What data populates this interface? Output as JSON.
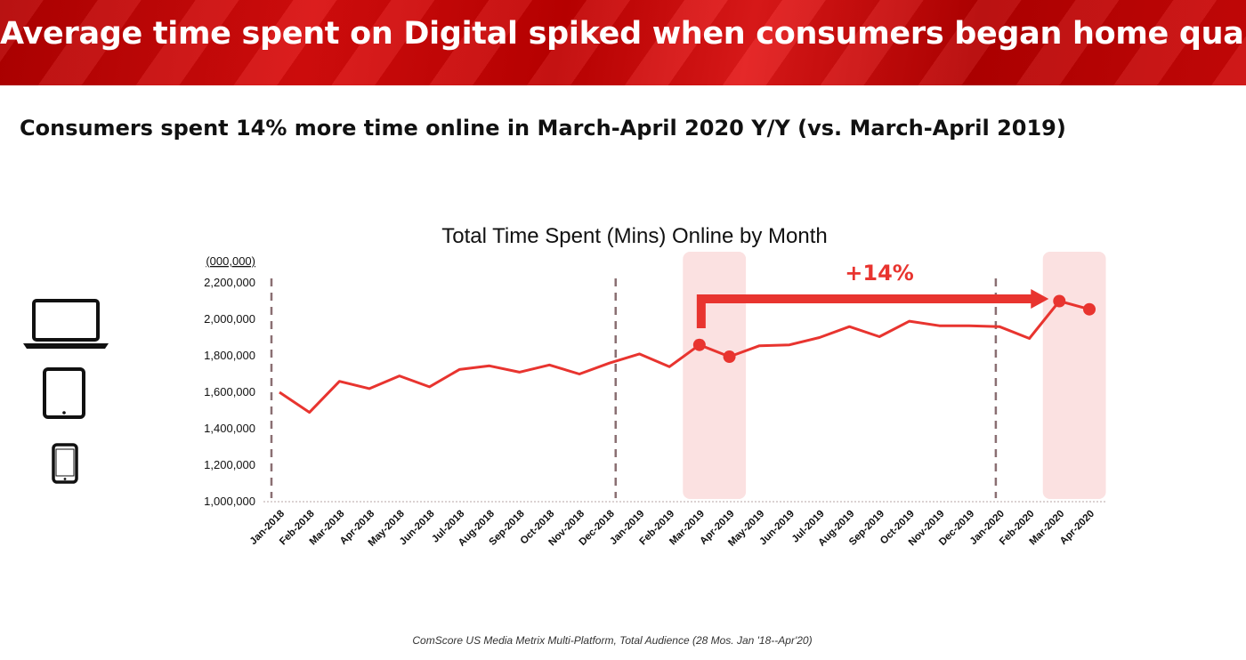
{
  "header": {
    "title": "Average time spent on Digital spiked when consumers began home quarantine"
  },
  "subtitle": "Consumers spent 14% more time online in March-April 2020 Y/Y (vs. March-April 2019)",
  "source_note": "ComScore US Media Metrix Multi-Platform, Total Audience (28 Mos. Jan '18--Apr'20)",
  "colors": {
    "line": "#e8342f",
    "highlight_band": "#fbe1e1",
    "year_divider": "#8a6f72",
    "annotation": "#e8342f",
    "header_bg": "#c00000"
  },
  "devices": [
    "laptop-icon",
    "tablet-icon",
    "smartphone-icon"
  ],
  "chart_data": {
    "type": "line",
    "title": "Total Time Spent (Mins) Online by Month",
    "unit_label": "(000,000)",
    "categories": [
      "Jan-2018",
      "Feb-2018",
      "Mar-2018",
      "Apr-2018",
      "May-2018",
      "Jun-2018",
      "Jul-2018",
      "Aug-2018",
      "Sep-2018",
      "Oct-2018",
      "Nov-2018",
      "Dec-2018",
      "Jan-2019",
      "Feb-2019",
      "Mar-2019",
      "Apr-2019",
      "May-2019",
      "Jun-2019",
      "Jul-2019",
      "Aug-2019",
      "Sep-2019",
      "Oct-2019",
      "Nov-2019",
      "Dec-2019",
      "Jan-2020",
      "Feb-2020",
      "Mar-2020",
      "Apr-2020"
    ],
    "values": [
      1600000,
      1490000,
      1660000,
      1620000,
      1690000,
      1630000,
      1725000,
      1745000,
      1710000,
      1750000,
      1700000,
      1760000,
      1810000,
      1740000,
      1860000,
      1795000,
      1855000,
      1860000,
      1900000,
      1960000,
      1905000,
      1990000,
      1965000,
      1965000,
      1960000,
      1895000,
      2100000,
      2055000
    ],
    "ylim": [
      1000000,
      2200000
    ],
    "yticks": [
      1000000,
      1200000,
      1400000,
      1600000,
      1800000,
      2000000,
      2200000
    ],
    "ytick_labels": [
      "1,000,000",
      "1,200,000",
      "1,400,000",
      "1,600,000",
      "1,800,000",
      "2,000,000",
      "2,200,000"
    ],
    "highlighted_points": [
      "Mar-2019",
      "Apr-2019",
      "Mar-2020",
      "Apr-2020"
    ],
    "highlight_bands": [
      [
        "Mar-2019",
        "Apr-2019"
      ],
      [
        "Mar-2020",
        "Apr-2020"
      ]
    ],
    "year_dividers": [
      "Jan-2018",
      "Dec-2018",
      "Jan-2020"
    ],
    "annotation": {
      "text": "+14%",
      "from": "Mar-2019",
      "to": "Mar-2020"
    },
    "grid": false,
    "legend": "none"
  }
}
